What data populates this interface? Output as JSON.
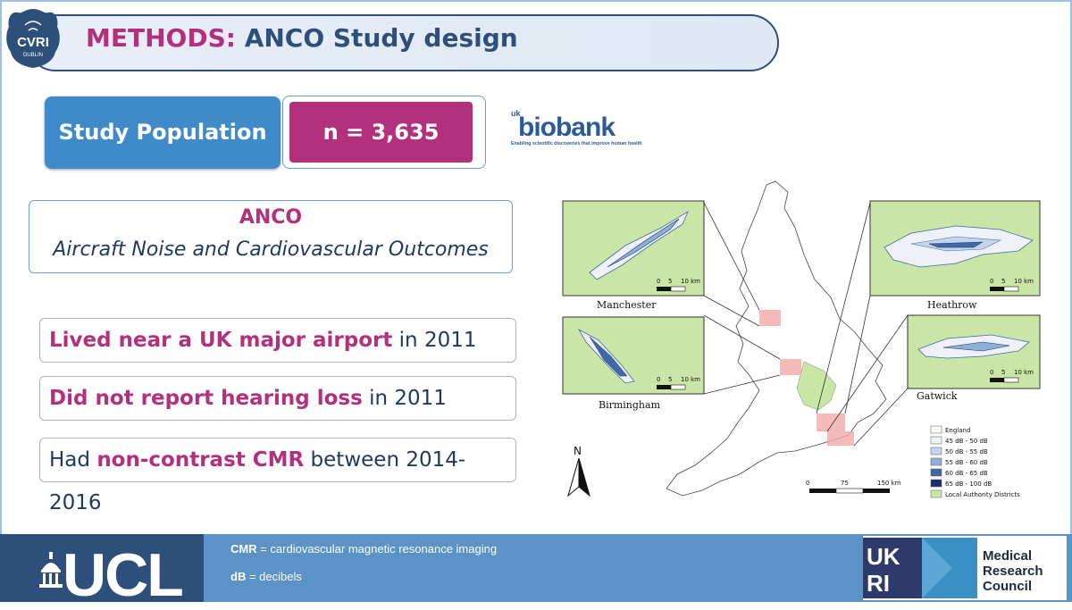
{
  "title": {
    "accent": "METHODS:",
    "rest": "ANCO Study design"
  },
  "cvri_logo": {
    "line1": "CVRI",
    "line2": "DUBLIN"
  },
  "population": {
    "label": "Study Population",
    "value": "n = 3,635"
  },
  "biobank": {
    "prefix": "uk",
    "name": "biobank",
    "tagline": "Enabling scientific discoveries that improve human health"
  },
  "anco": {
    "title": "ANCO",
    "subtitle": "Aircraft Noise and Cardiovascular Outcomes"
  },
  "criteria": [
    {
      "highlight": "Lived near a UK major airport",
      "rest": " in 2011"
    },
    {
      "highlight": "Did not report hearing loss",
      "rest": " in 2011"
    },
    {
      "pre": "Had ",
      "highlight": "non-contrast CMR",
      "rest": " between 2014-2016"
    }
  ],
  "map": {
    "insets": [
      "Manchester",
      "Birmingham",
      "Heathrow",
      "Gatwick"
    ],
    "inset_scale": [
      "0",
      "5",
      "10 km"
    ],
    "main_scale": [
      "0",
      "75",
      "150 km"
    ],
    "north": "N",
    "legend": [
      "England",
      "45 dB - 50 dB",
      "50 dB - 55 dB",
      "55 dB - 60 dB",
      "60 dB - 65 dB",
      "65 dB - 100 dB",
      "Local Authority Districts"
    ],
    "legend_colors": [
      "#ffffff",
      "#eef2f8",
      "#c5d6ea",
      "#8fb0d6",
      "#3f6aa5",
      "#1b2f6b",
      "#c9e6a6"
    ]
  },
  "footer": {
    "ucl": "UCL",
    "notes": [
      {
        "abbr": "CMR",
        "text": " = cardiovascular magnetic resonance imaging"
      },
      {
        "abbr": "dB",
        "text": " = decibels"
      }
    ],
    "ukri": [
      "UK",
      "RI"
    ],
    "mrc": [
      "Medical",
      "Research",
      "Council"
    ]
  }
}
